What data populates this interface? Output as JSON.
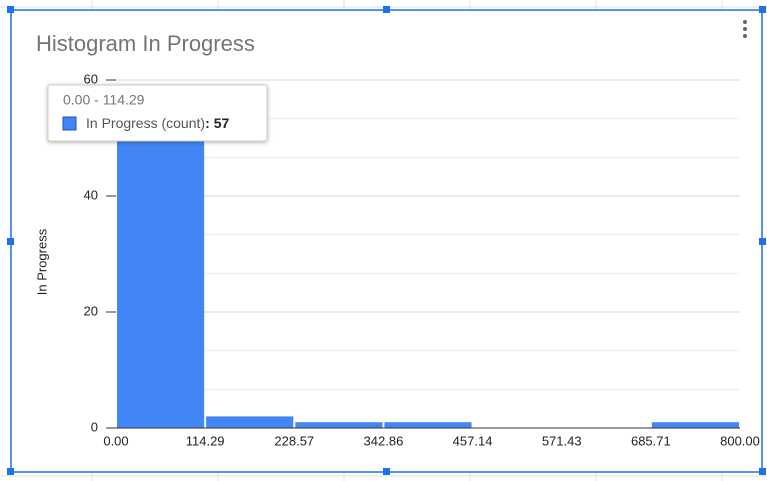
{
  "chart_data": {
    "type": "histogram",
    "title": "Histogram In Progress",
    "y_label": "In Progress",
    "bins": [
      0,
      114.29,
      228.57,
      342.86,
      457.14,
      571.43,
      685.71,
      800
    ],
    "values": [
      57,
      2,
      1,
      1,
      0,
      0,
      1
    ],
    "color": "#4285f4",
    "xlim": [
      0,
      800
    ],
    "xticks": [
      {
        "value": 0,
        "label": "0.00"
      },
      {
        "value": 114.29,
        "label": "114.29"
      },
      {
        "value": 228.57,
        "label": "228.57"
      },
      {
        "value": 342.86,
        "label": "342.86"
      },
      {
        "value": 457.14,
        "label": "457.14"
      },
      {
        "value": 571.43,
        "label": "571.43"
      },
      {
        "value": 685.71,
        "label": "685.71"
      },
      {
        "value": 800,
        "label": "800.00"
      }
    ],
    "ylim": [
      0,
      60
    ],
    "yticks": [
      0,
      20,
      40,
      60
    ],
    "grid": true,
    "minor_grid_per_interval": 2,
    "tooltip": {
      "title": "0.00 - 114.29",
      "series": "In Progress (count)",
      "separator": ":",
      "value": 57
    }
  }
}
